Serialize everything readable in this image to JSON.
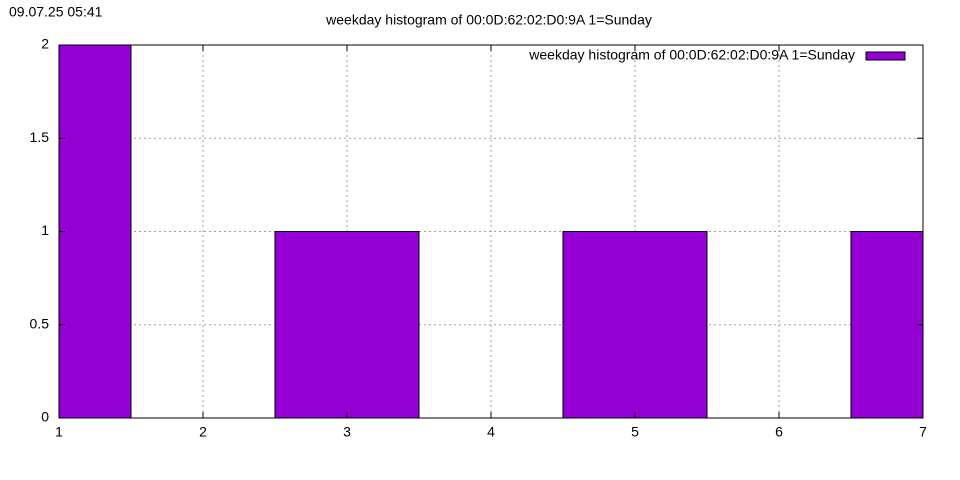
{
  "timestamp": "09.07.25 05:41",
  "chart_data": {
    "type": "bar",
    "title": "weekday histogram of 00:0D:62:02:D0:9A 1=Sunday",
    "series": [
      {
        "name": "weekday histogram of 00:0D:62:02:D0:9A 1=Sunday",
        "color": "#9400d3",
        "x": [
          1,
          3,
          5,
          7
        ],
        "values": [
          2,
          1,
          1,
          1
        ]
      }
    ],
    "xlim": [
      1,
      7
    ],
    "xticks": [
      1,
      2,
      3,
      4,
      5,
      6,
      7
    ],
    "ylim": [
      0,
      2
    ],
    "yticks": [
      0,
      0.5,
      1,
      1.5,
      2
    ],
    "grid": true,
    "legend": "top right"
  }
}
